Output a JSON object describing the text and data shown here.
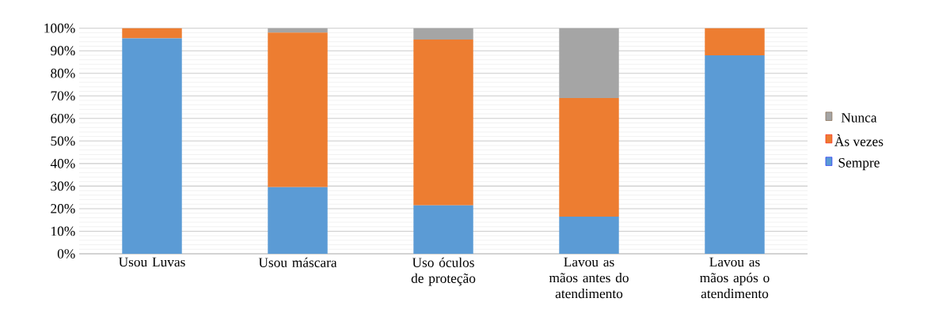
{
  "chart_data": {
    "type": "bar",
    "stacked": true,
    "categories": [
      "Usou Luvas",
      "Usou máscara",
      "Uso óculos de proteção",
      "Lavou as mãos antes do atendimento",
      "Lavou as mãos após o atendimento"
    ],
    "series": [
      {
        "name": "Sempre",
        "color": "#5b9bd5",
        "values": [
          95.5,
          29.5,
          21.5,
          16.5,
          88
        ]
      },
      {
        "name": "Às vezes",
        "color": "#ed7d31",
        "values": [
          4.5,
          68.5,
          73.5,
          52.5,
          12
        ]
      },
      {
        "name": "Nunca",
        "color": "#a5a5a5",
        "values": [
          0,
          2,
          5,
          31,
          0
        ]
      }
    ],
    "ylim": [
      0,
      100
    ],
    "yticks": [
      {
        "value": 0,
        "label": "0%"
      },
      {
        "value": 10,
        "label": "10%"
      },
      {
        "value": 20,
        "label": "20%"
      },
      {
        "value": 30,
        "label": "30%"
      },
      {
        "value": 40,
        "label": "40%"
      },
      {
        "value": 50,
        "label": "50%"
      },
      {
        "value": 60,
        "label": "60%"
      },
      {
        "value": 70,
        "label": "70%"
      },
      {
        "value": 80,
        "label": "80%"
      },
      {
        "value": 90,
        "label": "90%"
      },
      {
        "value": 100,
        "label": "100%"
      }
    ],
    "grid": "y",
    "legend": "right"
  }
}
